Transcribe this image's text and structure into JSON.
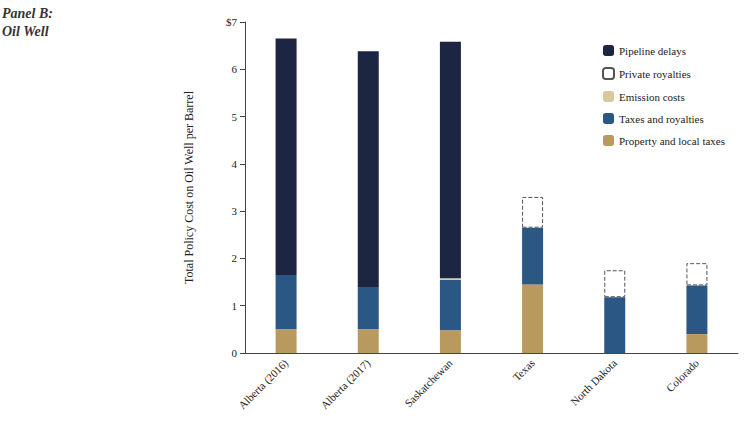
{
  "chart_data": {
    "type": "bar",
    "annotation": [
      "Panel B:",
      "Oil Well"
    ],
    "y_label": "Total Policy Cost on Oil Well per Barrel",
    "categories": [
      "Alberta (2016)",
      "Alberta (2017)",
      "Saskatchewan",
      "Texas",
      "North Dakota",
      "Colorado"
    ],
    "series": [
      {
        "name": "Pipeline delays",
        "color": "#1c2541",
        "values": [
          5.0,
          5.0,
          5.0,
          0,
          0,
          0
        ]
      },
      {
        "name": "Private royalties",
        "color": "#ffffff",
        "line_style": "dashed",
        "values": [
          null,
          null,
          null,
          0.65,
          0.57,
          0.47
        ]
      },
      {
        "name": "Emission costs",
        "color": "#d8c89c",
        "values": [
          0,
          0,
          0.03,
          0,
          0,
          0
        ]
      },
      {
        "name": "Taxes and royalties",
        "color": "#2b5785",
        "values": [
          1.15,
          0.88,
          1.07,
          1.2,
          1.18,
          1.03
        ]
      },
      {
        "name": "Property and local taxes",
        "color": "#b89a5e",
        "values": [
          0.5,
          0.5,
          0.48,
          1.45,
          0,
          0.4
        ]
      }
    ],
    "stacked": true,
    "grid": false,
    "legend": "top-right",
    "ylim": [
      0,
      7
    ],
    "yticks": [
      0,
      1,
      2,
      3,
      4,
      5,
      6,
      {
        "value": 7,
        "label": "$7"
      }
    ]
  }
}
